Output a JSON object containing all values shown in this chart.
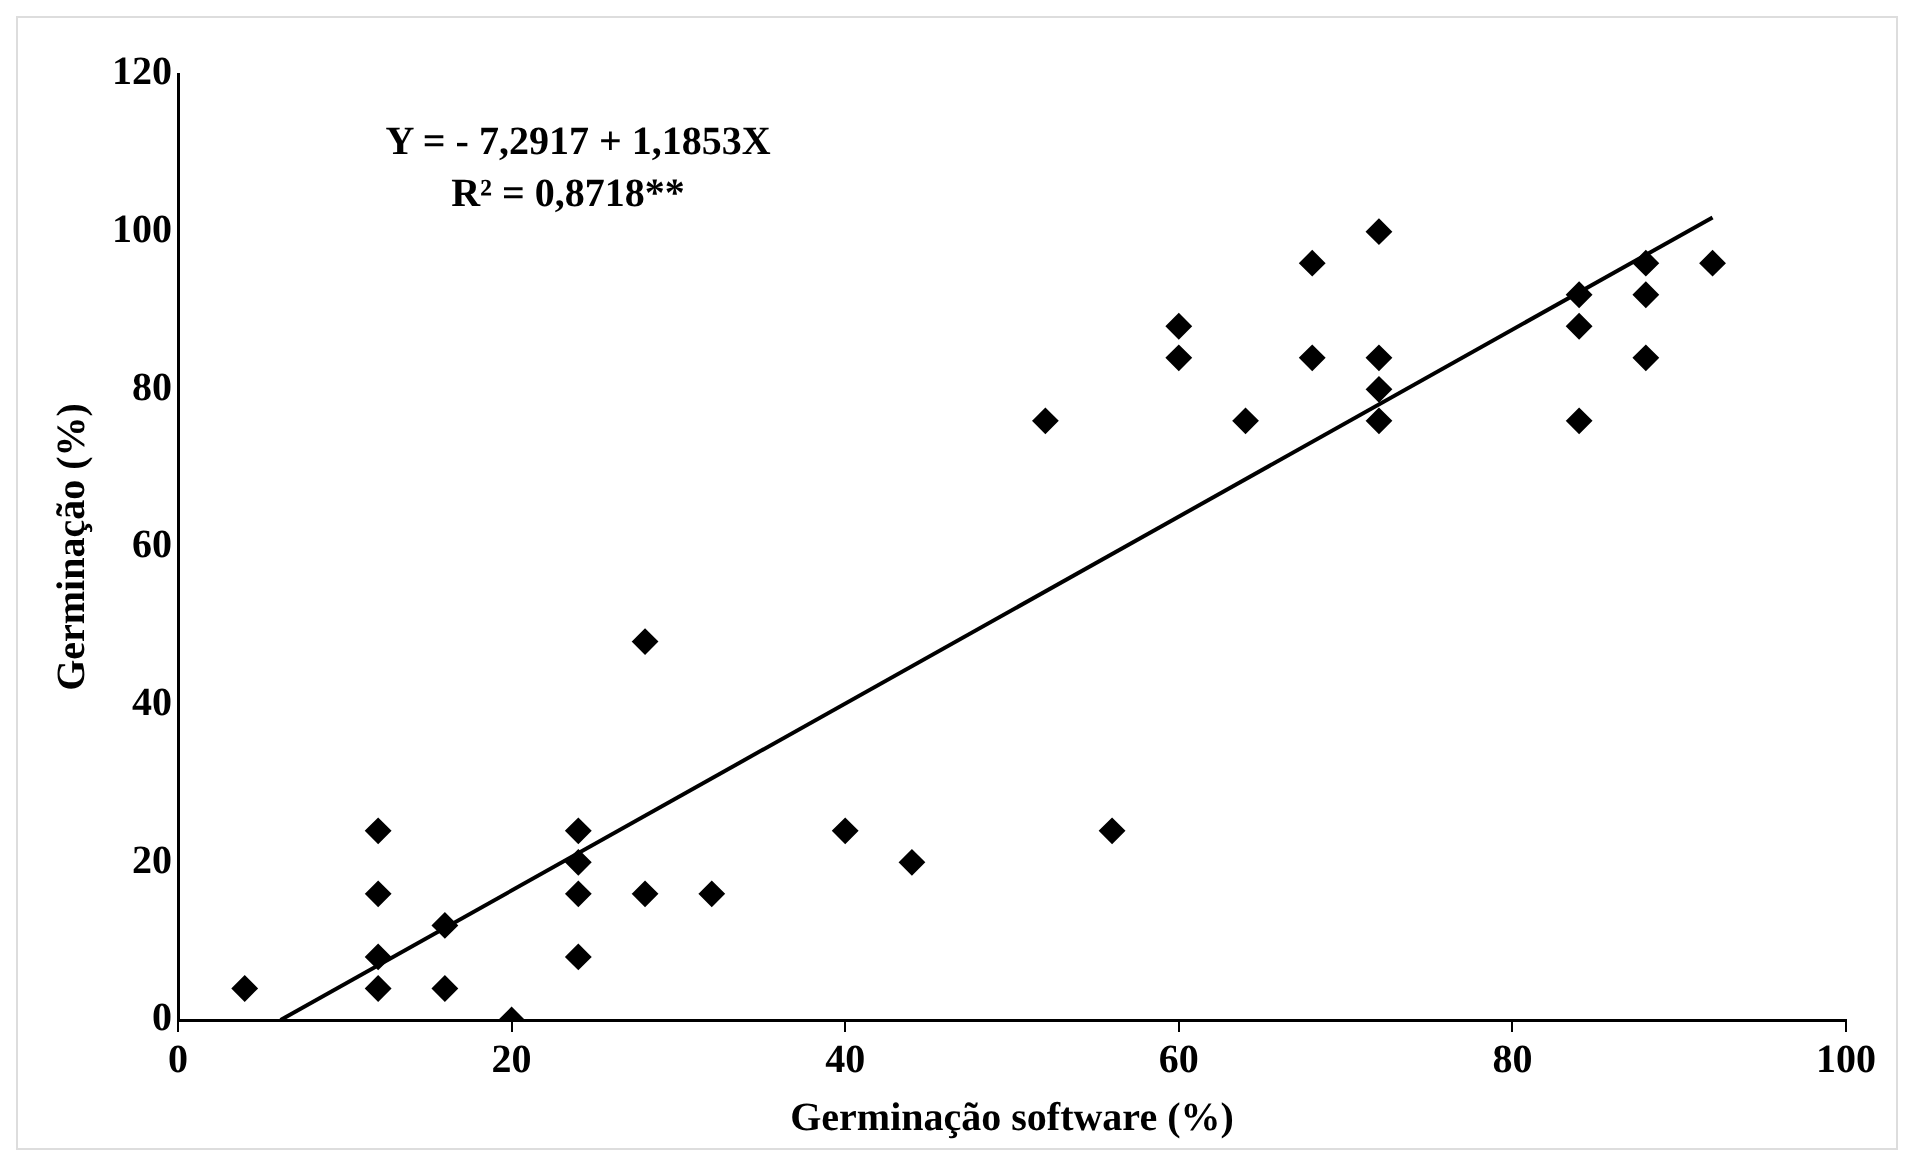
{
  "chart_data": {
    "type": "scatter",
    "xlabel": "Germinação software (%)",
    "ylabel": "Germinação (%)",
    "annotations": [
      "Y = - 7,2917 + 1,1853X",
      "R² = 0,8718**"
    ],
    "xlim": [
      0,
      100
    ],
    "xticks": [
      0,
      20,
      40,
      60,
      80,
      100
    ],
    "ylim": [
      0,
      120
    ],
    "yticks": [
      0,
      20,
      40,
      60,
      80,
      100,
      120
    ],
    "grid": false,
    "legend": false,
    "series": [
      {
        "color": "#000000",
        "marker": "diamond",
        "x": [
          4,
          12,
          12,
          12,
          12,
          16,
          16,
          20,
          24,
          24,
          24,
          24,
          28,
          28,
          32,
          40,
          44,
          52,
          56,
          60,
          60,
          64,
          68,
          68,
          72,
          72,
          72,
          72,
          84,
          84,
          84,
          88,
          88,
          88,
          92
        ],
        "values": [
          4,
          24,
          16,
          8,
          4,
          12,
          4,
          0,
          24,
          20,
          16,
          8,
          48,
          16,
          16,
          24,
          20,
          76,
          24,
          88,
          84,
          76,
          96,
          84,
          100,
          84,
          80,
          76,
          92,
          88,
          76,
          96,
          92,
          84,
          96
        ]
      },
      {
        "type": "line",
        "color": "#000000",
        "line_style": "solid",
        "marker": "none",
        "x": [
          6.15,
          92
        ],
        "values": [
          0,
          101.8
        ]
      }
    ]
  }
}
